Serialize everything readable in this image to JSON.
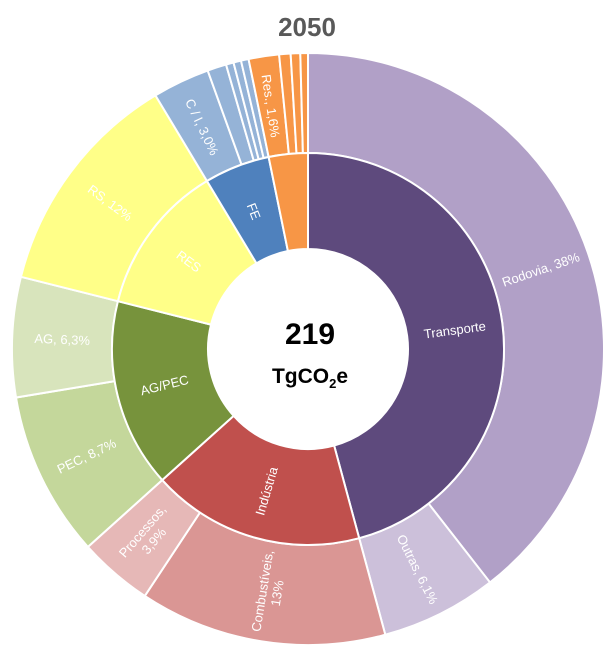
{
  "chart_data": {
    "type": "sunburst",
    "title": "2050",
    "center": {
      "value": "219",
      "unit_prefix": "TgCO",
      "unit_sub": "2",
      "unit_suffix": "e"
    },
    "inner": [
      {
        "name": "Transporte",
        "label": "Transporte",
        "value": 44.1,
        "color": "#5E4A7D"
      },
      {
        "name": "Industria",
        "label": "Indústria",
        "value": 16.9,
        "color": "#C0504D"
      },
      {
        "name": "AG/PEC",
        "label": "AG/PEC",
        "value": 15.0,
        "color": "#77933C"
      },
      {
        "name": "RES",
        "label": "RES",
        "value": 12.0,
        "color": "#FFFF88"
      },
      {
        "name": "FE",
        "label": "FE",
        "value": 5.2,
        "color": "#4F81BD"
      },
      {
        "name": "Outros",
        "label": "",
        "value": 3.1,
        "color": "#F79646"
      }
    ],
    "outer": [
      {
        "name": "Rodovia",
        "label": "Rodovia, 38%",
        "value": 38.0,
        "color": "#B1A0C7"
      },
      {
        "name": "Outras",
        "label": "Outras, 6,1%",
        "value": 6.1,
        "color": "#CCC0DA"
      },
      {
        "name": "Combustiveis",
        "label": "Combustíveis,",
        "label2": "13%",
        "value": 13.0,
        "color": "#DA9694"
      },
      {
        "name": "Processos",
        "label": "Processos,",
        "label2": "3,9%",
        "value": 3.9,
        "color": "#E6B8B7"
      },
      {
        "name": "PEC",
        "label": "PEC, 8,7%",
        "value": 8.7,
        "color": "#C4D79B"
      },
      {
        "name": "AG",
        "label": "AG, 6,3%",
        "value": 6.3,
        "color": "#D8E4BC"
      },
      {
        "name": "RS",
        "label": "RS, 12%",
        "value": 12.0,
        "color": "#FFFF88"
      },
      {
        "name": "CI",
        "label": "C / I, 3,0%",
        "value": 3.0,
        "color": "#95B3D7"
      },
      {
        "name": "FE-a",
        "label": "",
        "value": 1.0,
        "color": "#95B3D7"
      },
      {
        "name": "FE-b",
        "label": "",
        "value": 0.4,
        "color": "#95B3D7"
      },
      {
        "name": "FE-c",
        "label": "",
        "value": 0.4,
        "color": "#95B3D7"
      },
      {
        "name": "FE-d",
        "label": "",
        "value": 0.4,
        "color": "#95B3D7"
      },
      {
        "name": "Res",
        "label": "Res., 1,6%",
        "value": 1.6,
        "color": "#F79646"
      },
      {
        "name": "Out-a",
        "label": "",
        "value": 0.6,
        "color": "#F79646"
      },
      {
        "name": "Out-b",
        "label": "",
        "value": 0.5,
        "color": "#F79646"
      },
      {
        "name": "Out-c",
        "label": "",
        "value": 0.4,
        "color": "#F79646"
      }
    ]
  }
}
